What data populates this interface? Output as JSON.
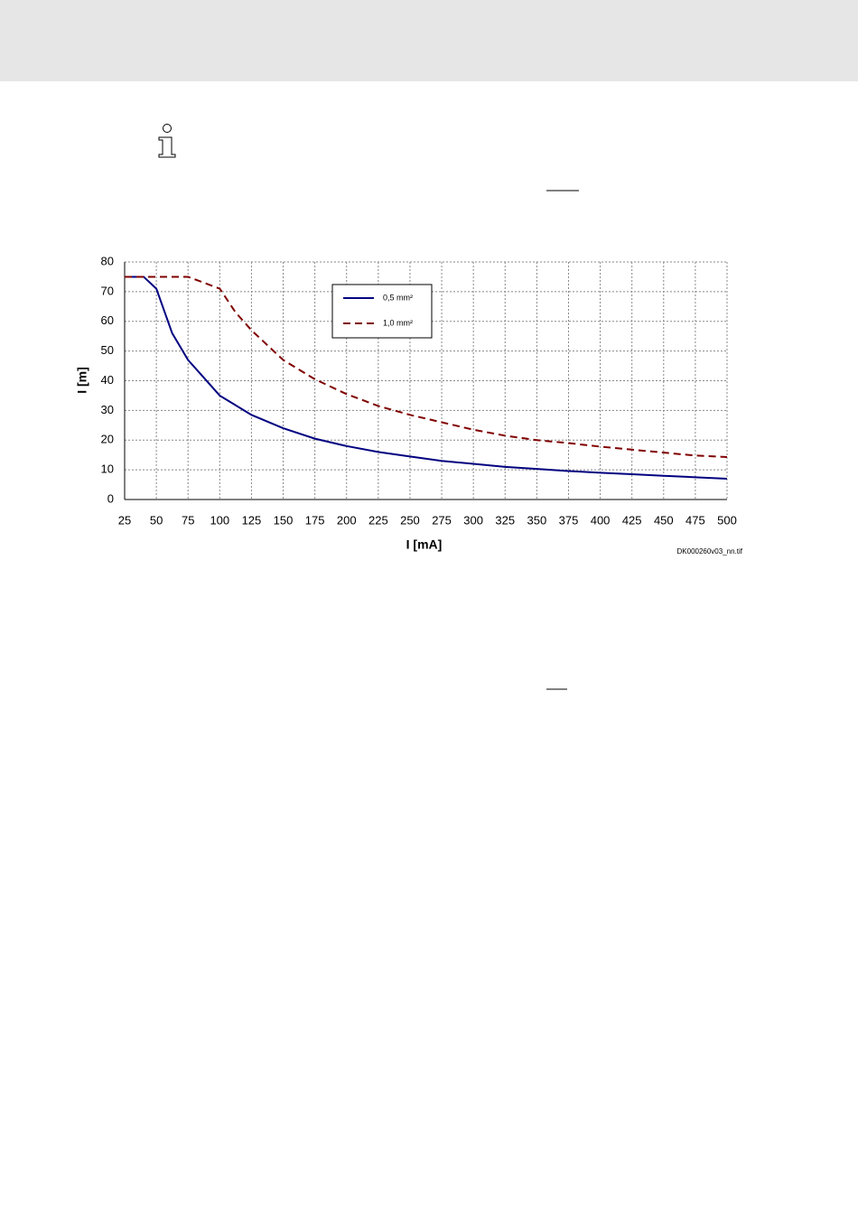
{
  "chart_data": {
    "type": "line",
    "xlabel": "I [mA]",
    "ylabel": "I [m]",
    "footnote": "DK000260v03_nn.tif",
    "xlim": [
      25,
      500
    ],
    "xticks": [
      25,
      50,
      75,
      100,
      125,
      150,
      175,
      200,
      225,
      250,
      275,
      300,
      325,
      350,
      375,
      400,
      425,
      450,
      475,
      500
    ],
    "ylim": [
      0,
      80
    ],
    "yticks": [
      0,
      10,
      20,
      30,
      40,
      50,
      60,
      70,
      80
    ],
    "grid": true,
    "legend": "upper-center",
    "series": [
      {
        "name": "0,5 mm²",
        "color": "#000080",
        "dash": false,
        "x": [
          25,
          40,
          50,
          62.5,
          75,
          87.5,
          100,
          125,
          150,
          175,
          200,
          225,
          250,
          275,
          300,
          325,
          350,
          375,
          400,
          425,
          450,
          475,
          500
        ],
        "values": [
          75,
          75,
          71,
          56,
          47,
          41,
          35,
          28.5,
          24,
          20.5,
          18,
          16,
          14.5,
          13,
          12,
          11,
          10.3,
          9.6,
          9,
          8.5,
          8,
          7.5,
          7
        ]
      },
      {
        "name": "1,0 mm²",
        "color": "#800000",
        "dash": true,
        "x": [
          25,
          50,
          75,
          100,
          112.5,
          125,
          150,
          175,
          200,
          225,
          250,
          275,
          300,
          325,
          350,
          375,
          400,
          425,
          450,
          475,
          500
        ],
        "values": [
          75,
          75,
          75,
          71,
          63,
          57,
          47,
          40.5,
          35.5,
          31.5,
          28.5,
          26,
          23.5,
          21.5,
          20,
          19,
          17.8,
          16.8,
          15.8,
          14.8,
          14.3
        ]
      }
    ]
  }
}
